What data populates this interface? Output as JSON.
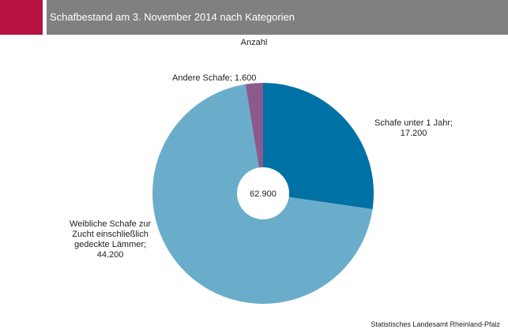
{
  "header": {
    "title": "Schafbestand am 3. November 2014 nach Kategorien",
    "accent_color": "#b5123f",
    "bar_color": "#808080"
  },
  "chart_data": {
    "type": "pie",
    "title": "Schafbestand am 3. November 2014 nach Kategorien",
    "subtitle": "Anzahl",
    "center_label": "62.900",
    "total": 62900,
    "series": [
      {
        "name": "Schafe unter 1 Jahr",
        "value": 17200,
        "label_lines": [
          "Schafe unter 1 Jahr;",
          "17.200"
        ],
        "color": "#0071a4"
      },
      {
        "name": "Weibliche Schafe zur Zucht einschließlich gedeckte Lämmer",
        "value": 44200,
        "label_lines": [
          "Weibliche Schafe zur",
          "Zucht einschließlich",
          "gedeckte Lämmer;",
          "44.200"
        ],
        "color": "#6aadcb"
      },
      {
        "name": "Andere Schafe",
        "value": 1600,
        "label_lines": [
          "Andere Schafe; 1.600"
        ],
        "color": "#8b5a8c"
      }
    ]
  },
  "footer": {
    "source": "Statistisches Landesamt Rheinland-Pfalz"
  }
}
